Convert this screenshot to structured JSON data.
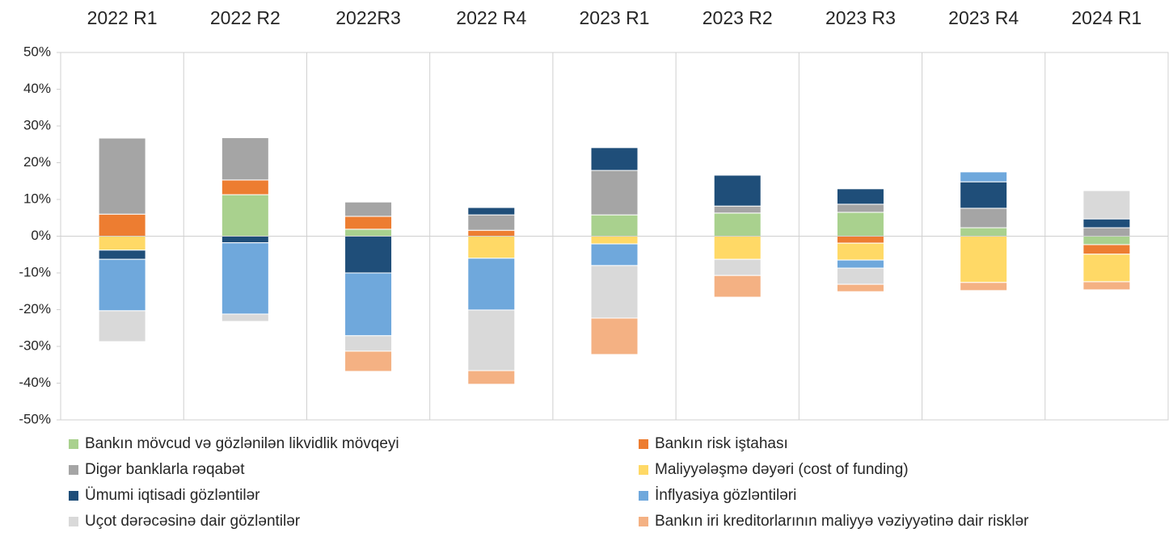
{
  "chart_data": {
    "type": "stacked_bar",
    "categories": [
      "2022 R1",
      "2022 R2",
      "2022R3",
      "2022 R4",
      "2023 R1",
      "2023 R2",
      "2023 R3",
      "2023 R4",
      "2024 R1"
    ],
    "series": [
      {
        "name": "Bankın mövcud və gözlənilən likvidlik mövqeyi",
        "color": "#a9d18e",
        "values": [
          0,
          11.3,
          1.9,
          0,
          5.8,
          6.3,
          6.5,
          2.3,
          -2.3
        ]
      },
      {
        "name": "Bankın risk iştahası",
        "color": "#ed7d31",
        "values": [
          6,
          4,
          3.5,
          1.6,
          0,
          0,
          -1.9,
          0,
          -2.6
        ]
      },
      {
        "name": "Digər banklarla rəqabət",
        "color": "#a5a5a5",
        "values": [
          20.7,
          11.5,
          3.9,
          4.2,
          12.1,
          1.9,
          2.2,
          5.3,
          2.3
        ]
      },
      {
        "name": "Maliyyələşmə dəyəri (cost of funding)",
        "color": "#ffd966",
        "values": [
          -3.8,
          0,
          0,
          -6,
          -2.1,
          -6.3,
          -4.6,
          -12.6,
          -7.5
        ]
      },
      {
        "name": "Ümumi iqtisadi gözləntilər",
        "color": "#1f4e79",
        "values": [
          -2.5,
          -1.8,
          -10,
          2,
          6.2,
          8.4,
          4.2,
          7.2,
          2.4
        ]
      },
      {
        "name": "İnflyasiya gözləntiləri",
        "color": "#6fa8dc",
        "values": [
          -14,
          -19.4,
          -17.1,
          -14.1,
          -5.9,
          0,
          -2.2,
          2.7,
          0
        ]
      },
      {
        "name": "Uçot dərəcəsinə dair gözləntilər",
        "color": "#d9d9d9",
        "values": [
          -8.4,
          -2,
          -4.2,
          -16.5,
          -14.3,
          -4.4,
          -4.4,
          0,
          7.7
        ]
      },
      {
        "name": "Bankın iri kreditorlarının maliyyə vəziyyətinə dair risklər",
        "color": "#f4b183",
        "values": [
          0,
          0,
          -5.5,
          -3.7,
          -9.9,
          -5.9,
          -2,
          -2.2,
          -2.2
        ]
      }
    ],
    "ylim": [
      -50,
      50
    ],
    "yticks": [
      {
        "value": -50,
        "label": "-50%"
      },
      {
        "value": -40,
        "label": "-40%"
      },
      {
        "value": -30,
        "label": "-30%"
      },
      {
        "value": -20,
        "label": "-20%"
      },
      {
        "value": -10,
        "label": "-10%"
      },
      {
        "value": 0,
        "label": "0%"
      },
      {
        "value": 10,
        "label": "10%"
      },
      {
        "value": 20,
        "label": "20%"
      },
      {
        "value": 30,
        "label": "30%"
      },
      {
        "value": 40,
        "label": "40%"
      },
      {
        "value": 50,
        "label": "50%"
      }
    ],
    "legend": "bottom"
  }
}
